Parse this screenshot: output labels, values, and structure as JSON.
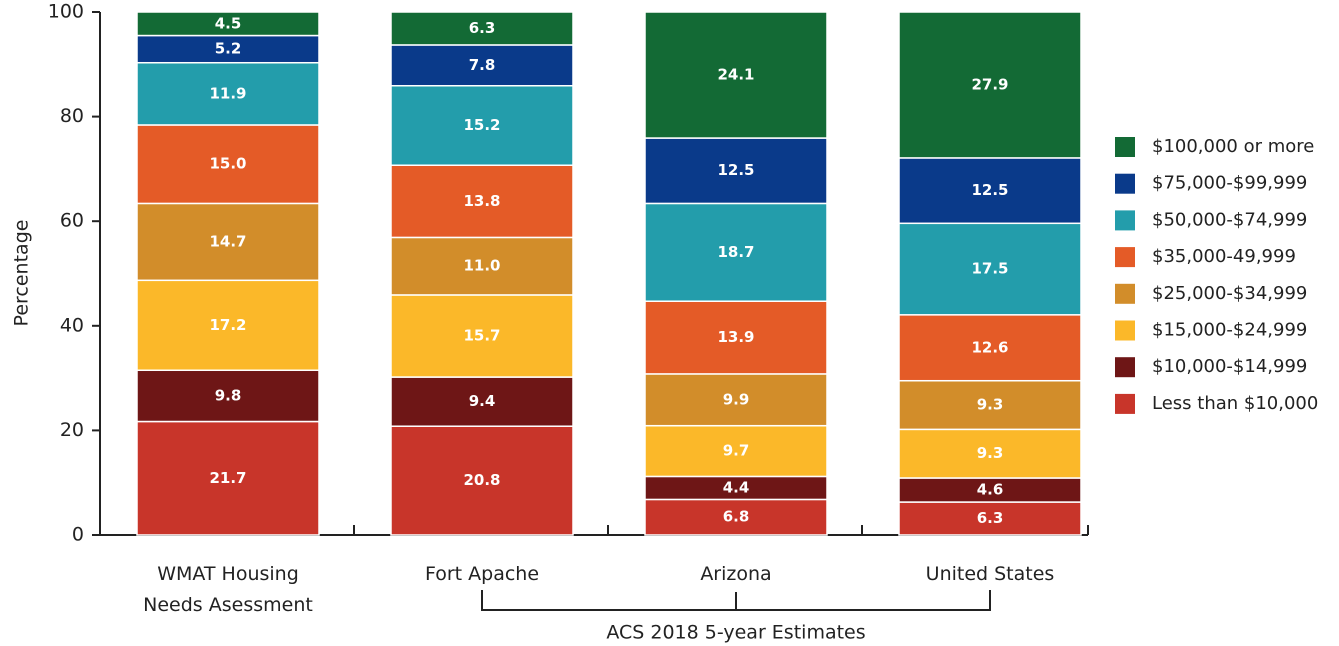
{
  "chart_data": {
    "type": "stacked_bar",
    "categories": [
      "WMAT Housing Needs Asessment",
      "Fort Apache",
      "Arizona",
      "United States"
    ],
    "y_label": "Percentage",
    "annotation": "ACS 2018 5-year Estimates",
    "ylim": [
      0,
      100
    ],
    "yticks": [
      0,
      20,
      40,
      60,
      80,
      100
    ],
    "legend": "right",
    "series": [
      {
        "name": "Less than $10,000",
        "color": "#c8352a",
        "values": [
          21.7,
          20.8,
          6.8,
          6.3
        ],
        "value_labels": [
          "21.7",
          "20.8",
          "6.8",
          "6.3"
        ]
      },
      {
        "name": "$10,000-$14,999",
        "color": "#6e1616",
        "values": [
          9.8,
          9.4,
          4.4,
          4.6
        ],
        "value_labels": [
          "9.8",
          "9.4",
          "4.4",
          "4.6"
        ]
      },
      {
        "name": "$15,000-$24,999",
        "color": "#fbb829",
        "values": [
          17.2,
          15.7,
          9.7,
          9.3
        ],
        "value_labels": [
          "17.2",
          "15.7",
          "9.7",
          "9.3"
        ]
      },
      {
        "name": "$25,000-$34,999",
        "color": "#d28d2a",
        "values": [
          14.7,
          11.0,
          9.9,
          9.3
        ],
        "value_labels": [
          "14.7",
          "11.0",
          "9.9",
          "9.3"
        ]
      },
      {
        "name": "$35,000-49,999",
        "color": "#e45b27",
        "values": [
          15.0,
          13.8,
          13.9,
          12.6
        ],
        "value_labels": [
          "15.0",
          "13.8",
          "13.9",
          "12.6"
        ]
      },
      {
        "name": "$50,000-$74,999",
        "color": "#239dab",
        "values": [
          11.9,
          15.2,
          18.7,
          17.5
        ],
        "value_labels": [
          "11.9",
          "15.2",
          "18.7",
          "17.5"
        ]
      },
      {
        "name": "$75,000-$99,999",
        "color": "#0a3a8a",
        "values": [
          5.2,
          7.8,
          12.5,
          12.5
        ],
        "value_labels": [
          "5.2",
          "7.8",
          "12.5",
          "12.5"
        ]
      },
      {
        "name": "$100,000 or more",
        "color": "#136a35",
        "values": [
          4.5,
          6.3,
          24.1,
          27.9
        ],
        "value_labels": [
          "4.5",
          "6.3",
          "24.1",
          "27.9"
        ]
      }
    ]
  }
}
